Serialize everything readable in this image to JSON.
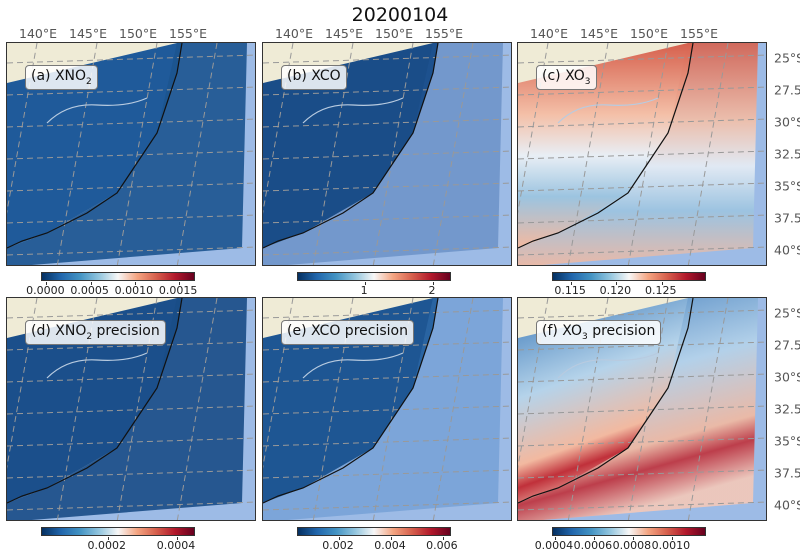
{
  "title": "20200104",
  "top_axis_labels": [
    "140°E",
    "145°E",
    "150°E",
    "155°E"
  ],
  "right_axis_labels": [
    "25°S",
    "27.5°S",
    "30°S",
    "32.5°S",
    "35°S",
    "37.5°S",
    "40°S"
  ],
  "colors": {
    "land": "#efebd6",
    "ocean": "#9dbbe6",
    "swath_low": "#1a4f8a",
    "grid": "#999999",
    "coast": "#111111"
  },
  "panels": [
    {
      "id": "a",
      "label_pre": "(a) XNO",
      "label_sub": "2",
      "label_post": "",
      "colorbar": {
        "range": [
          -5e-05,
          0.00169
        ],
        "ticks": [
          "0.0000",
          "0.0005",
          "0.0010",
          "0.0015"
        ],
        "tick_values": [
          0,
          0.0005,
          0.001,
          0.0015
        ]
      }
    },
    {
      "id": "b",
      "label_pre": "(b) XCO",
      "label_sub": "",
      "label_post": "",
      "colorbar": {
        "range": [
          0.01,
          2.28
        ],
        "ticks": [
          "1",
          "2"
        ],
        "tick_values": [
          1,
          2
        ]
      }
    },
    {
      "id": "c",
      "label_pre": "(c) XO",
      "label_sub": "3",
      "label_post": "",
      "colorbar": {
        "range": [
          0.113,
          0.13
        ],
        "ticks": [
          "0.115",
          "0.120",
          "0.125"
        ],
        "tick_values": [
          0.115,
          0.12,
          0.125
        ]
      }
    },
    {
      "id": "d",
      "label_pre": "(d) XNO",
      "label_sub": "2",
      "label_post": " precision",
      "colorbar": {
        "range": [
          1e-05,
          0.000455
        ],
        "ticks": [
          "0.0002",
          "0.0004"
        ],
        "tick_values": [
          0.0002,
          0.0004
        ]
      }
    },
    {
      "id": "e",
      "label_pre": "(e) XCO precision",
      "label_sub": "",
      "label_post": "",
      "colorbar": {
        "range": [
          0.00042,
          0.00635
        ],
        "ticks": [
          "0.002",
          "0.004",
          "0.006"
        ],
        "tick_values": [
          0.002,
          0.004,
          0.006
        ]
      }
    },
    {
      "id": "f",
      "label_pre": "(f) XO",
      "label_sub": "3",
      "label_post": " precision",
      "colorbar": {
        "range": [
          0.00039,
          0.00118
        ],
        "ticks": [
          "0.0004",
          "0.0006",
          "0.0008",
          "0.0010"
        ],
        "tick_values": [
          0.0004,
          0.0006,
          0.0008,
          0.001
        ]
      }
    }
  ]
}
